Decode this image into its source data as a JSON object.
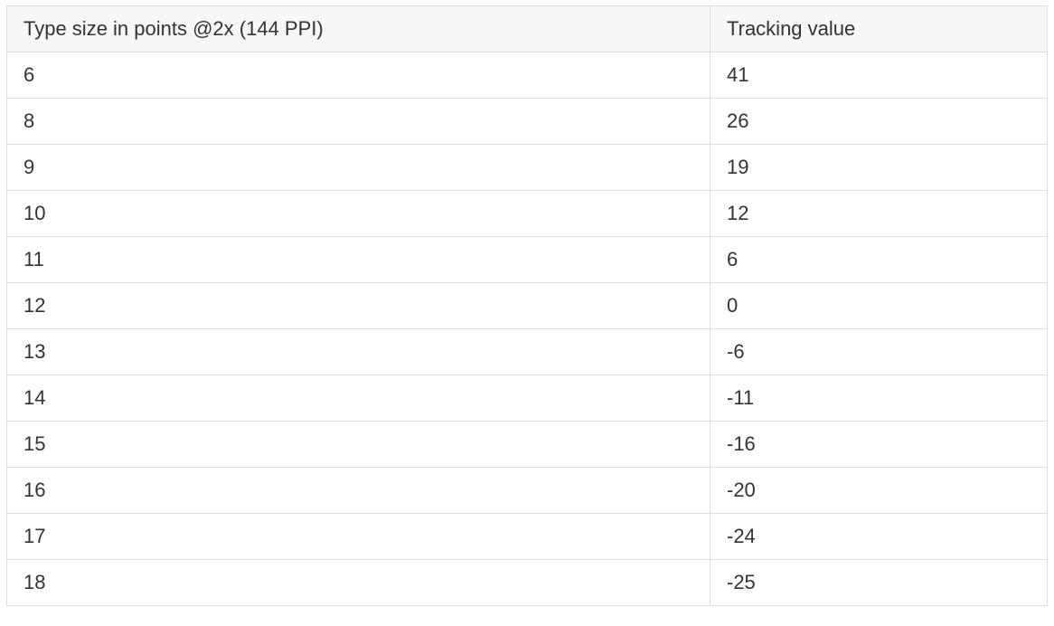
{
  "table": {
    "headers": [
      "Type size in points @2x (144 PPI)",
      "Tracking value"
    ],
    "rows": [
      [
        "6",
        "41"
      ],
      [
        "8",
        "26"
      ],
      [
        "9",
        "19"
      ],
      [
        "10",
        "12"
      ],
      [
        "11",
        "6"
      ],
      [
        "12",
        "0"
      ],
      [
        "13",
        "-6"
      ],
      [
        "14",
        "-11"
      ],
      [
        "15",
        "-16"
      ],
      [
        "16",
        "-20"
      ],
      [
        "17",
        "-24"
      ],
      [
        "18",
        "-25"
      ]
    ],
    "colors": {
      "header_background": "#f7f7f7",
      "border": "#dddddd",
      "text": "#333333"
    }
  }
}
